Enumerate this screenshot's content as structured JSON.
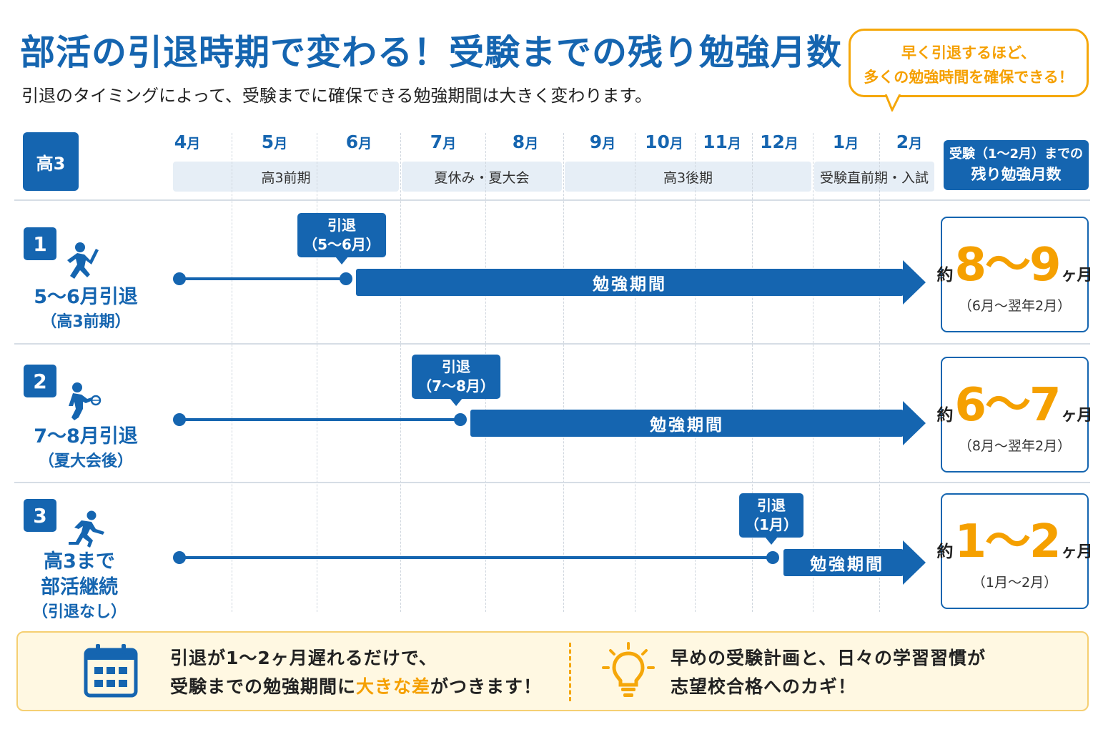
{
  "title": "部活の引退時期で変わる！受験までの残り勉強月数",
  "subtitle": "引退のタイミングによって、受験までに確保できる勉強期間は大きく変わります。",
  "bubble": {
    "line1": "早く引退するほど、",
    "line2": "多くの勉強時間を確保できる！"
  },
  "grade": "高3",
  "months": [
    {
      "num": "4",
      "unit": "月"
    },
    {
      "num": "5",
      "unit": "月"
    },
    {
      "num": "6",
      "unit": "月"
    },
    {
      "num": "7",
      "unit": "月"
    },
    {
      "num": "8",
      "unit": "月"
    },
    {
      "num": "9",
      "unit": "月"
    },
    {
      "num": "10",
      "unit": "月"
    },
    {
      "num": "11",
      "unit": "月"
    },
    {
      "num": "12",
      "unit": "月"
    },
    {
      "num": "1",
      "unit": "月"
    },
    {
      "num": "2",
      "unit": "月"
    }
  ],
  "periods": [
    "高3前期",
    "夏休み・夏大会",
    "高3後期",
    "受験直前期・入試"
  ],
  "result_header": {
    "line1": "受験（1〜2月）までの",
    "line2": "残り勉強月数"
  },
  "study_label": "勉強期間",
  "retire_word": "引退",
  "rows": [
    {
      "num": "1",
      "icon": "runner-relay-icon",
      "label1": "5〜6月引退",
      "label2": "（高3前期）",
      "label3": "",
      "retire_sub": "（5〜6月）",
      "approx": "約",
      "months": "8〜9",
      "unit": "ヶ月",
      "range": "（6月〜翌年2月）",
      "retire_month_index": 2
    },
    {
      "num": "2",
      "icon": "athlete-ball-icon",
      "label1": "7〜8月引退",
      "label2": "（夏大会後）",
      "label3": "",
      "retire_sub": "（7〜8月）",
      "approx": "約",
      "months": "6〜7",
      "unit": "ヶ月",
      "range": "（8月〜翌年2月）",
      "retire_month_index": 3
    },
    {
      "num": "3",
      "icon": "running-person-icon",
      "label1": "高3まで",
      "label2": "部活継続",
      "label3": "（引退なし）",
      "retire_sub": "（1月）",
      "approx": "約",
      "months": "1〜2",
      "unit": "ヶ月",
      "range": "（1月〜2月）",
      "retire_month_index": 9
    }
  ],
  "footer": {
    "left_line1": "引退が1〜2ヶ月遅れるだけで、",
    "left_line2_pre": "受験までの勉強期間に",
    "left_line2_hl": "大きな差",
    "left_line2_post": "がつきます！",
    "right_line1": "早めの受験計画と、日々の学習習慣が",
    "right_line2": "志望校合格へのカギ！"
  },
  "colors": {
    "brand": "#1565b0",
    "accent": "#f5a000",
    "period_bg": "#e6eef6",
    "footer_bg": "#fff8e2"
  }
}
